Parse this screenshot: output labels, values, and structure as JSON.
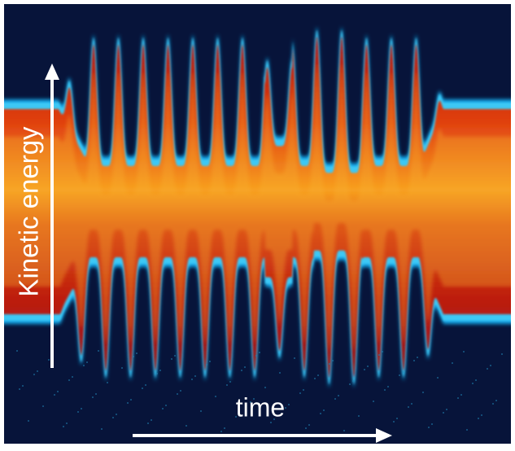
{
  "image": {
    "y_label": "Kinetic energy",
    "x_label": "time"
  }
}
